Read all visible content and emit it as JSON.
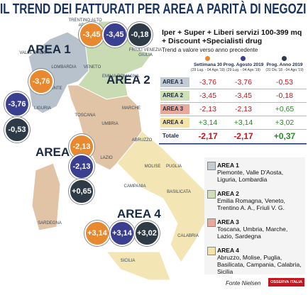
{
  "title": "IL TREND DEI FATTURATI PER AREA A PARITÀ DI NEGOZI",
  "map": {
    "areas": [
      "AREA 1",
      "AREA 2",
      "AREA 3",
      "AREA 4"
    ],
    "regions": [
      "TRENTINO ALTO ADIGE",
      "FRIULI VENEZIA GIULIA",
      "VALLE D'AOSTA",
      "LOMBARDIA",
      "VENETO",
      "PIEMONTE",
      "EMILIA ROMAGNA",
      "LIGURIA",
      "MARCHE",
      "TOSCANA",
      "UMBRIA",
      "ABRUZZO",
      "LAZIO",
      "MOLISE",
      "PUGLIA",
      "CAMPANIA",
      "SARDEGNA",
      "BASILICATA",
      "CALABRIA",
      "SICILIA"
    ],
    "bubbles": [
      [
        "-3,76",
        "-3,76",
        "-0,53"
      ],
      [
        "-3,45",
        "-3,45",
        "-0,18"
      ],
      [
        "-2,13",
        "-2,13",
        "+0,65"
      ],
      [
        "+3,14",
        "+3,14",
        "+3,02"
      ]
    ]
  },
  "table": {
    "heading": "Iper + Super + Liberi servizi 100-399 mq + Discount +Specialisti drug",
    "subheading": "Trend a valore verso anno precedente",
    "columns": [
      {
        "label": "Settimana 30",
        "period": "(29 Lug. - 04 Ago.'19)"
      },
      {
        "label": "Prog. Agosto 2019",
        "period": "(29 Lug. - 04 Ago.'19)"
      },
      {
        "label": "Prog. Anno 2019",
        "period": "(31 Dic.'18 - 04 Ago.'19)"
      }
    ],
    "rows": [
      [
        "AREA 1",
        "-3,76",
        "-3,76",
        "-0,53"
      ],
      [
        "AREA 2",
        "-3,45",
        "-3,45",
        "-0,18"
      ],
      [
        "AREA 3",
        "-2,13",
        "-2,13",
        "+0,65"
      ],
      [
        "AREA 4",
        "+3,14",
        "+3,14",
        "+3,02"
      ],
      [
        "Totale",
        "-2,17",
        "-2,17",
        "+0,37"
      ]
    ]
  },
  "legend": [
    {
      "title": "AREA 1",
      "regions": "Piemonte, Valle D'Aosta, Liguria, Lombardia"
    },
    {
      "title": "AREA 2",
      "regions": "Emilia Romagna, Veneto, Trentino A. A., Friuli V. G."
    },
    {
      "title": "AREA 3",
      "regions": "Toscana, Umbria, Marche, Lazio, Sardegna"
    },
    {
      "title": "AREA 4",
      "regions": "Abruzzo, Molise, Puglia, Basilicata, Campania, Calabria, Sicilia"
    }
  ],
  "source": "Fonte Nielsen",
  "logo": "OSSERVA ITALIA"
}
